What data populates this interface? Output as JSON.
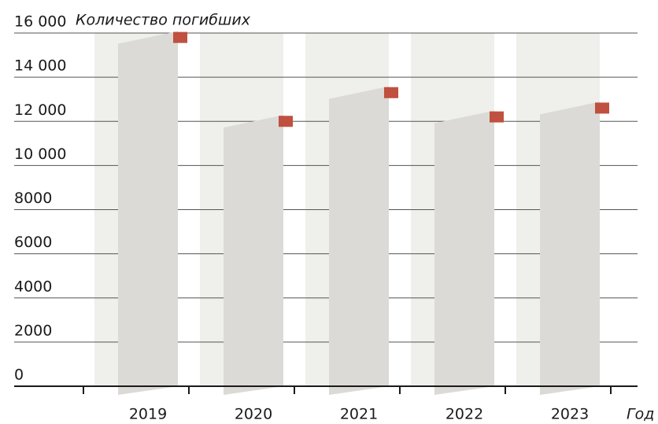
{
  "chart_data": {
    "type": "bar",
    "y_label": "Количество погибших",
    "x_label": "Год",
    "categories": [
      "2019",
      "2020",
      "2021",
      "2022",
      "2023"
    ],
    "values": [
      15800,
      12000,
      13300,
      12200,
      12600
    ],
    "color": "#dcdad6",
    "marker_color": "#c0503f",
    "ylim": [
      0,
      16000
    ],
    "yticks": [
      0,
      2000,
      4000,
      6000,
      8000,
      {
        "value": 10000,
        "label": "10 000"
      },
      {
        "value": 12000,
        "label": "12 000"
      },
      {
        "value": 14000,
        "label": "14 000"
      },
      {
        "value": 16000,
        "label": "16 000"
      }
    ],
    "grid": true
  }
}
